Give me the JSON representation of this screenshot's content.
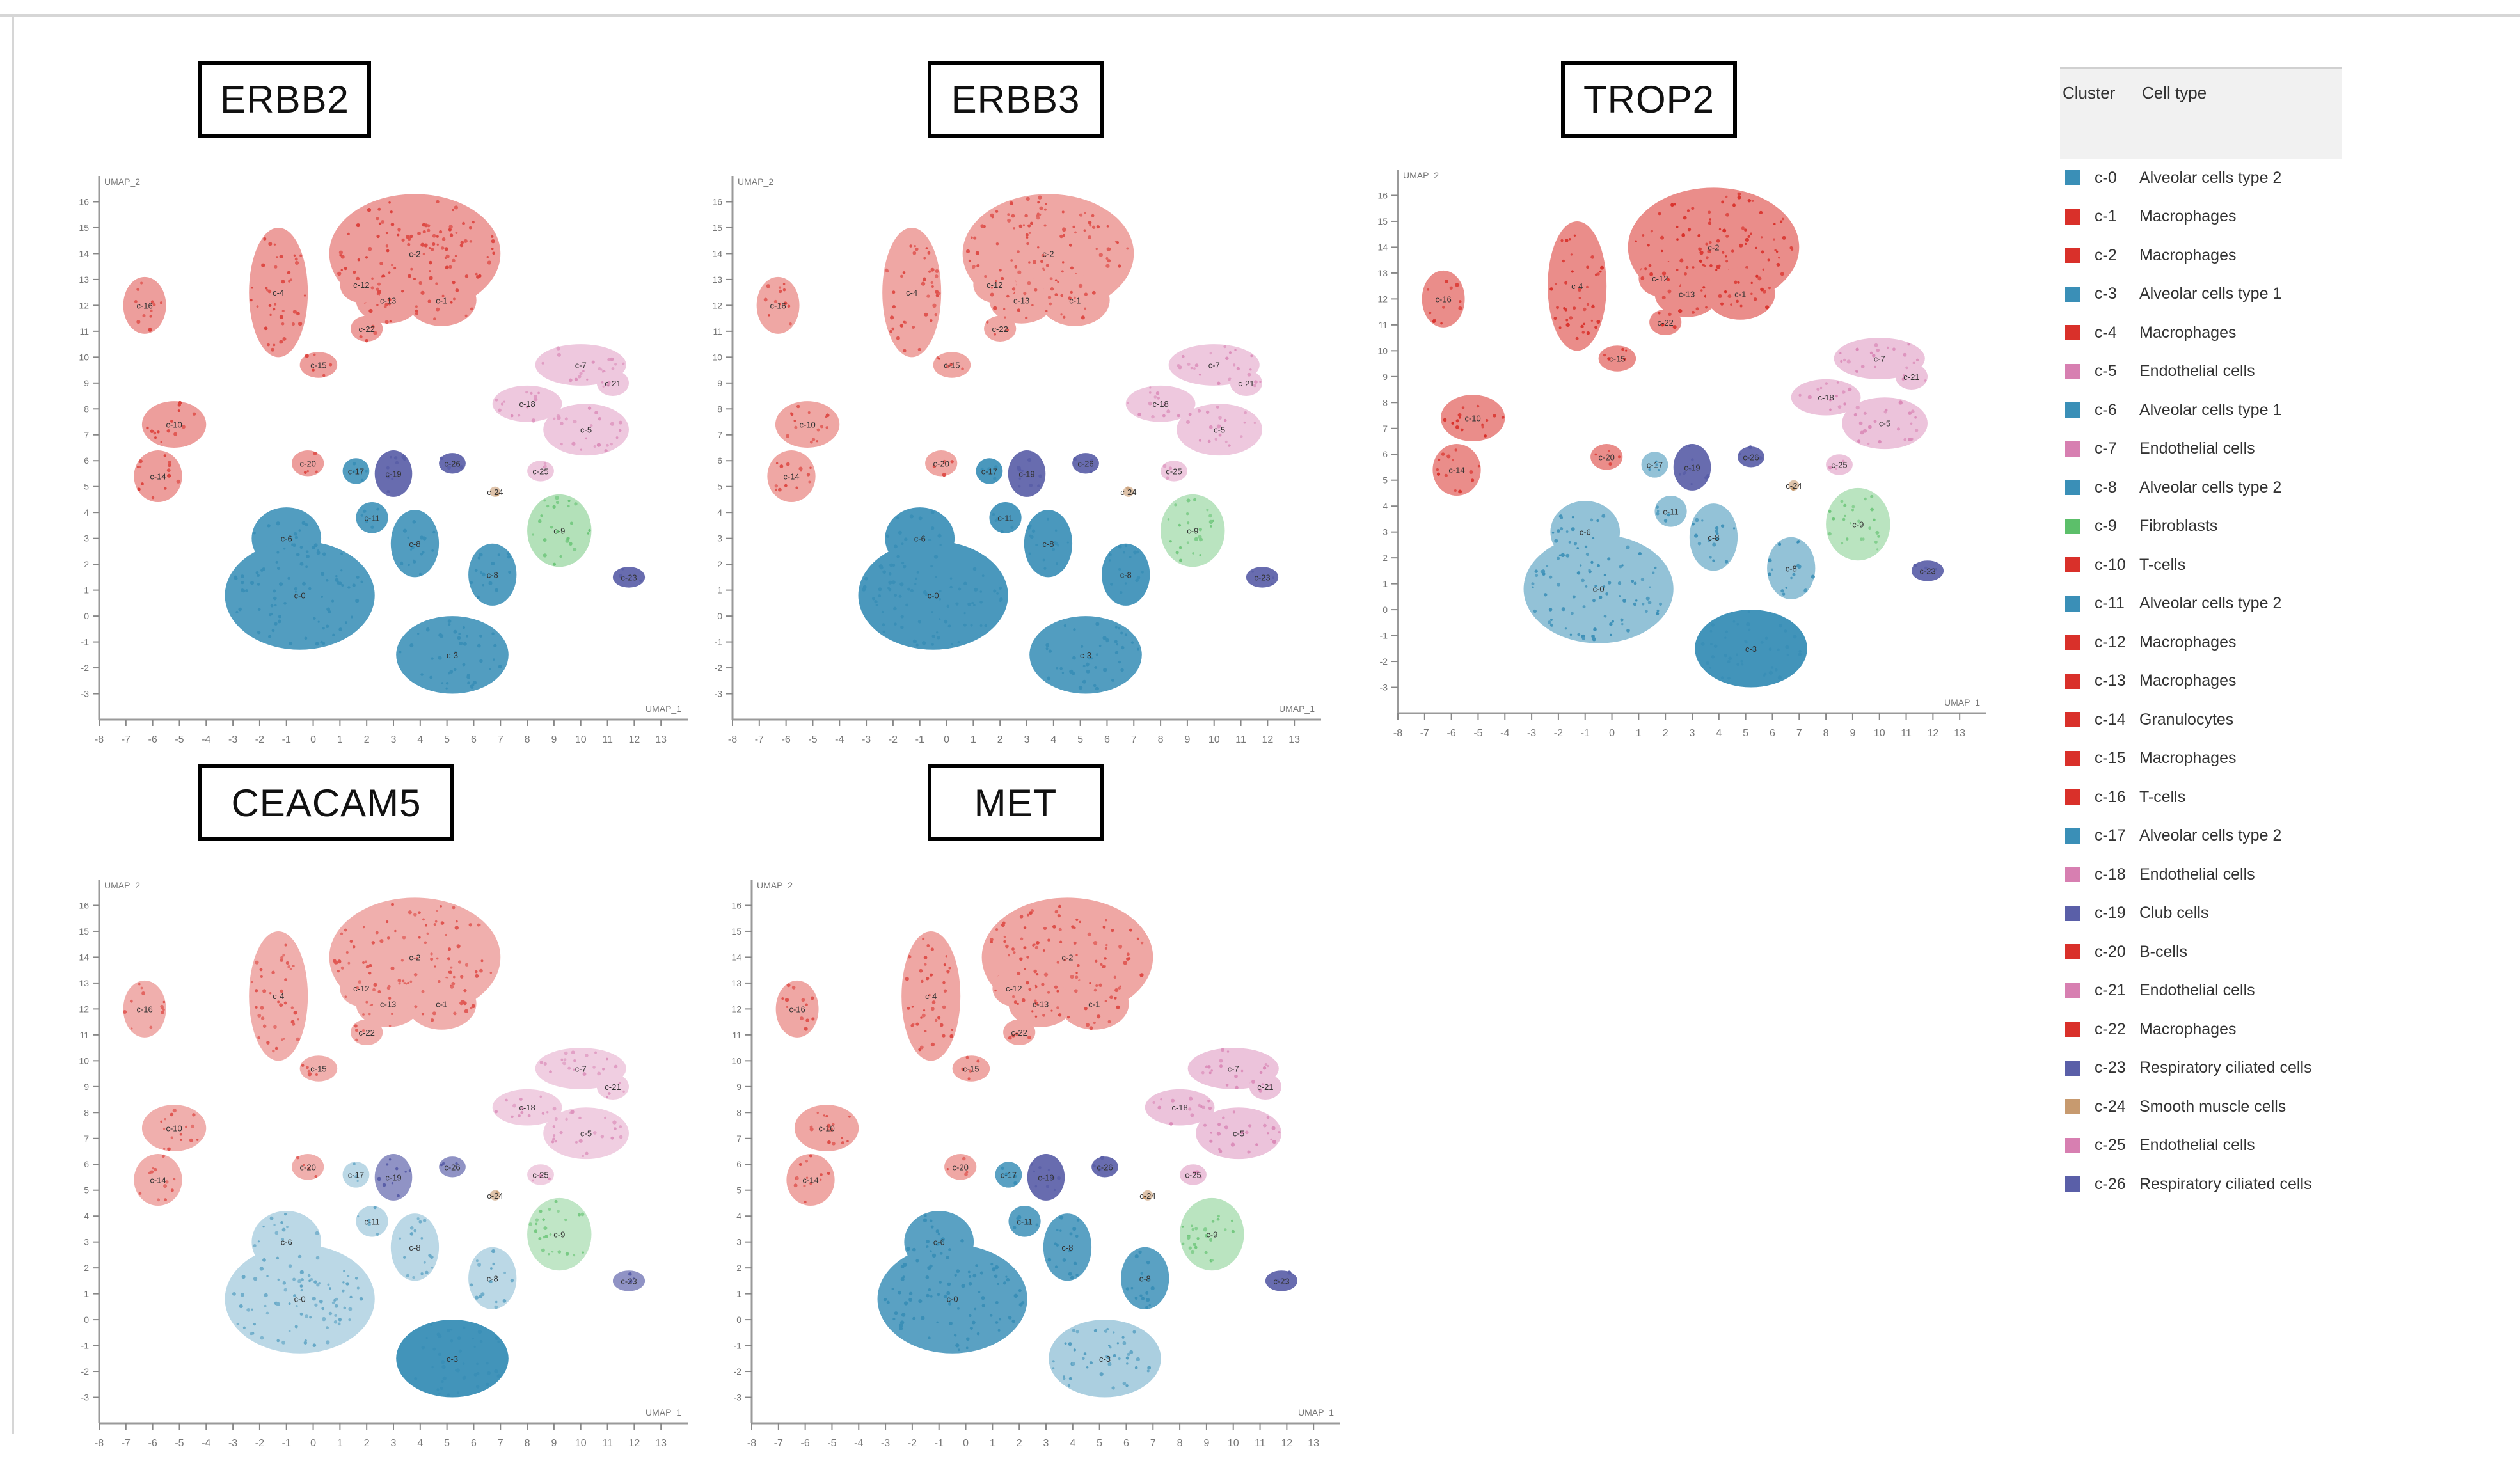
{
  "colors": {
    "teal": "#3a8fb7",
    "red": "#d9302a",
    "pink": "#d77fb1",
    "green": "#5cbf6a",
    "navy": "#5a5fa8",
    "tan": "#c79a6f"
  },
  "panels": [
    {
      "gene": "ERBB2",
      "axis_x_label": "UMAP_1",
      "axis_y_label": "UMAP_2"
    },
    {
      "gene": "ERBB3",
      "axis_x_label": "UMAP_1",
      "axis_y_label": "UMAP_2"
    },
    {
      "gene": "TROP2",
      "axis_x_label": "UMAP_1",
      "axis_y_label": "UMAP_2"
    },
    {
      "gene": "CEACAM5",
      "axis_x_label": "UMAP_1",
      "axis_y_label": "UMAP_2"
    },
    {
      "gene": "MET",
      "axis_x_label": "UMAP_1",
      "axis_y_label": "UMAP_2"
    }
  ],
  "legend": {
    "header_cluster": "Cluster",
    "header_type": "Cell type",
    "items": [
      {
        "cluster": "c-0",
        "type": "Alveolar cells type 2",
        "color": "#3a8fb7"
      },
      {
        "cluster": "c-1",
        "type": "Macrophages",
        "color": "#d9302a"
      },
      {
        "cluster": "c-2",
        "type": "Macrophages",
        "color": "#d9302a"
      },
      {
        "cluster": "c-3",
        "type": "Alveolar cells type 1",
        "color": "#3a8fb7"
      },
      {
        "cluster": "c-4",
        "type": "Macrophages",
        "color": "#d9302a"
      },
      {
        "cluster": "c-5",
        "type": "Endothelial cells",
        "color": "#d77fb1"
      },
      {
        "cluster": "c-6",
        "type": "Alveolar cells type 1",
        "color": "#3a8fb7"
      },
      {
        "cluster": "c-7",
        "type": "Endothelial cells",
        "color": "#d77fb1"
      },
      {
        "cluster": "c-8",
        "type": "Alveolar cells type 2",
        "color": "#3a8fb7"
      },
      {
        "cluster": "c-9",
        "type": "Fibroblasts",
        "color": "#5cbf6a"
      },
      {
        "cluster": "c-10",
        "type": "T-cells",
        "color": "#d9302a"
      },
      {
        "cluster": "c-11",
        "type": "Alveolar cells type 2",
        "color": "#3a8fb7"
      },
      {
        "cluster": "c-12",
        "type": "Macrophages",
        "color": "#d9302a"
      },
      {
        "cluster": "c-13",
        "type": "Macrophages",
        "color": "#d9302a"
      },
      {
        "cluster": "c-14",
        "type": "Granulocytes",
        "color": "#d9302a"
      },
      {
        "cluster": "c-15",
        "type": "Macrophages",
        "color": "#d9302a"
      },
      {
        "cluster": "c-16",
        "type": "T-cells",
        "color": "#d9302a"
      },
      {
        "cluster": "c-17",
        "type": "Alveolar cells type 2",
        "color": "#3a8fb7"
      },
      {
        "cluster": "c-18",
        "type": "Endothelial cells",
        "color": "#d77fb1"
      },
      {
        "cluster": "c-19",
        "type": "Club cells",
        "color": "#5a5fa8"
      },
      {
        "cluster": "c-20",
        "type": "B-cells",
        "color": "#d9302a"
      },
      {
        "cluster": "c-21",
        "type": "Endothelial cells",
        "color": "#d77fb1"
      },
      {
        "cluster": "c-22",
        "type": "Macrophages",
        "color": "#d9302a"
      },
      {
        "cluster": "c-23",
        "type": "Respiratory ciliated cells",
        "color": "#5a5fa8"
      },
      {
        "cluster": "c-24",
        "type": "Smooth muscle cells",
        "color": "#c79a6f"
      },
      {
        "cluster": "c-25",
        "type": "Endothelial cells",
        "color": "#d77fb1"
      },
      {
        "cluster": "c-26",
        "type": "Respiratory ciliated cells",
        "color": "#5a5fa8"
      }
    ]
  },
  "chart_data": {
    "type": "scatter",
    "description_type": "umap-feature-plots",
    "xlim": [
      -8,
      14
    ],
    "ylim": [
      -4,
      17
    ],
    "x_ticks": [
      -8,
      -7,
      -6,
      -5,
      -4,
      -3,
      -2,
      -1,
      0,
      1,
      2,
      3,
      4,
      5,
      6,
      7,
      8,
      9,
      10,
      11,
      12,
      13
    ],
    "y_ticks": [
      -3,
      -2,
      -1,
      0,
      1,
      2,
      3,
      4,
      5,
      6,
      7,
      8,
      9,
      10,
      11,
      12,
      13,
      14,
      15,
      16
    ],
    "clusters": [
      {
        "label": "c-2",
        "cx": 3.8,
        "cy": 14.0,
        "rx": 3.2,
        "ry": 2.3,
        "group": "red"
      },
      {
        "label": "c-13",
        "cx": 2.8,
        "cy": 12.2,
        "rx": 1.2,
        "ry": 0.9,
        "group": "red"
      },
      {
        "label": "c-1",
        "cx": 4.8,
        "cy": 12.2,
        "rx": 1.3,
        "ry": 1.0,
        "group": "red"
      },
      {
        "label": "c-12",
        "cx": 1.8,
        "cy": 12.8,
        "rx": 0.8,
        "ry": 0.7,
        "group": "red"
      },
      {
        "label": "c-22",
        "cx": 2.0,
        "cy": 11.1,
        "rx": 0.6,
        "ry": 0.5,
        "group": "red"
      },
      {
        "label": "c-4",
        "cx": -1.3,
        "cy": 12.5,
        "rx": 1.1,
        "ry": 2.5,
        "group": "red"
      },
      {
        "label": "c-15",
        "cx": 0.2,
        "cy": 9.7,
        "rx": 0.7,
        "ry": 0.5,
        "group": "red"
      },
      {
        "label": "c-16",
        "cx": -6.3,
        "cy": 12.0,
        "rx": 0.8,
        "ry": 1.1,
        "group": "red"
      },
      {
        "label": "c-10",
        "cx": -5.2,
        "cy": 7.4,
        "rx": 1.2,
        "ry": 0.9,
        "group": "red"
      },
      {
        "label": "c-14",
        "cx": -5.8,
        "cy": 5.4,
        "rx": 0.9,
        "ry": 1.0,
        "group": "red"
      },
      {
        "label": "c-20",
        "cx": -0.2,
        "cy": 5.9,
        "rx": 0.6,
        "ry": 0.5,
        "group": "red"
      },
      {
        "label": "c-7",
        "cx": 10.0,
        "cy": 9.7,
        "rx": 1.7,
        "ry": 0.8,
        "group": "pink"
      },
      {
        "label": "c-21",
        "cx": 11.2,
        "cy": 9.0,
        "rx": 0.6,
        "ry": 0.5,
        "group": "pink"
      },
      {
        "label": "c-18",
        "cx": 8.0,
        "cy": 8.2,
        "rx": 1.3,
        "ry": 0.7,
        "group": "pink"
      },
      {
        "label": "c-5",
        "cx": 10.2,
        "cy": 7.2,
        "rx": 1.6,
        "ry": 1.0,
        "group": "pink"
      },
      {
        "label": "c-25",
        "cx": 8.5,
        "cy": 5.6,
        "rx": 0.5,
        "ry": 0.4,
        "group": "pink"
      },
      {
        "label": "c-9",
        "cx": 9.2,
        "cy": 3.3,
        "rx": 1.2,
        "ry": 1.4,
        "group": "green"
      },
      {
        "label": "c-26",
        "cx": 5.2,
        "cy": 5.9,
        "rx": 0.5,
        "ry": 0.4,
        "group": "navy"
      },
      {
        "label": "c-19",
        "cx": 3.0,
        "cy": 5.5,
        "rx": 0.7,
        "ry": 0.9,
        "group": "navy"
      },
      {
        "label": "c-23",
        "cx": 11.8,
        "cy": 1.5,
        "rx": 0.6,
        "ry": 0.4,
        "group": "navy"
      },
      {
        "label": "c-24",
        "cx": 6.8,
        "cy": 4.8,
        "rx": 0.2,
        "ry": 0.2,
        "group": "tan"
      },
      {
        "label": "c-17",
        "cx": 1.6,
        "cy": 5.6,
        "rx": 0.5,
        "ry": 0.5,
        "group": "teal"
      },
      {
        "label": "c-11",
        "cx": 2.2,
        "cy": 3.8,
        "rx": 0.6,
        "ry": 0.6,
        "group": "teal"
      },
      {
        "label": "c-6",
        "cx": -1.0,
        "cy": 3.0,
        "rx": 1.3,
        "ry": 1.2,
        "group": "teal"
      },
      {
        "label": "c-0",
        "cx": -0.5,
        "cy": 0.8,
        "rx": 2.8,
        "ry": 2.1,
        "group": "teal"
      },
      {
        "label": "c-8",
        "cx": 3.8,
        "cy": 2.8,
        "rx": 0.9,
        "ry": 1.3,
        "group": "teal"
      },
      {
        "label": "c-3",
        "cx": 5.2,
        "cy": -1.5,
        "rx": 2.1,
        "ry": 1.5,
        "group": "teal"
      },
      {
        "label": "c-8",
        "cx": 6.7,
        "cy": 1.6,
        "rx": 0.9,
        "ry": 1.2,
        "group": "teal"
      }
    ],
    "panel_expression": {
      "ERBB2": {
        "red": 0.35,
        "pink": 0.3,
        "green": 0.35,
        "navy": 0.9,
        "tan": 0.5,
        "teal": 0.85,
        "c-3": 0.85
      },
      "ERBB3": {
        "red": 0.3,
        "pink": 0.3,
        "green": 0.3,
        "navy": 0.9,
        "tan": 0.5,
        "teal": 0.9,
        "c-3": 0.85
      },
      "TROP2": {
        "red": 0.45,
        "pink": 0.35,
        "green": 0.3,
        "navy": 0.9,
        "tan": 0.5,
        "teal": 0.45,
        "c-3": 0.95
      },
      "CEACAM5": {
        "red": 0.25,
        "pink": 0.25,
        "green": 0.25,
        "navy": 0.6,
        "tan": 0.5,
        "teal": 0.2,
        "c-3": 0.95
      },
      "MET": {
        "red": 0.3,
        "pink": 0.35,
        "green": 0.3,
        "navy": 0.9,
        "tan": 0.5,
        "teal": 0.8,
        "c-3": 0.3
      }
    }
  }
}
